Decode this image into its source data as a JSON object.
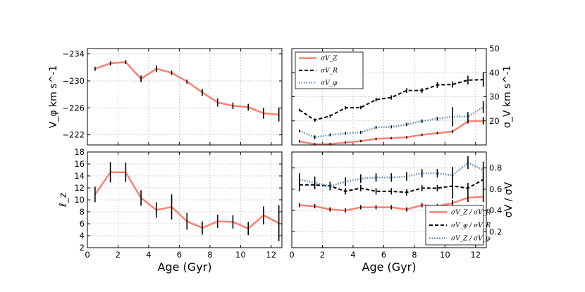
{
  "chart_data": [
    {
      "id": "tl",
      "type": "line",
      "ylabel": "V_φ km s^-1",
      "xlim": [
        0,
        12.7
      ],
      "ylim": [
        -220.5,
        -234.8
      ],
      "yticks": [
        -222,
        -226,
        -230,
        -234
      ],
      "yticklabels": [
        "−222",
        "−226",
        "−230",
        "−234"
      ],
      "xticks": [
        0,
        2,
        4,
        6,
        8,
        10,
        12
      ],
      "series": [
        {
          "name": "V_phi",
          "color": "#fa8072",
          "dash": "",
          "width": 2.5,
          "x": [
            0.5,
            1.5,
            2.5,
            3.5,
            4.5,
            5.5,
            6.5,
            7.5,
            8.5,
            9.5,
            10.5,
            11.5,
            12.5
          ],
          "y": [
            -231.8,
            -232.6,
            -232.8,
            -230.3,
            -231.8,
            -231.2,
            -229.9,
            -228.3,
            -226.8,
            -226.3,
            -226.1,
            -225.2,
            -225.0
          ],
          "err": [
            0.3,
            0.3,
            0.3,
            0.5,
            0.5,
            0.3,
            0.3,
            0.5,
            0.6,
            0.5,
            0.5,
            0.8,
            1.0
          ]
        }
      ]
    },
    {
      "id": "tr",
      "type": "line",
      "ylabel": "σ_V km s^-1",
      "xlim": [
        0,
        12.7
      ],
      "ylim": [
        10,
        50
      ],
      "yticks": [
        20,
        30,
        40,
        50
      ],
      "yticklabels": [
        "20",
        "30",
        "40",
        "50"
      ],
      "xticks": [
        0,
        2,
        4,
        6,
        8,
        10,
        12
      ],
      "legend": {
        "position": "top-left",
        "labels": [
          "σV_Z",
          "σV_R",
          "σV_φ"
        ]
      },
      "series": [
        {
          "name": "sigma_VZ",
          "color": "#fa8072",
          "dash": "",
          "width": 2.5,
          "x": [
            0.5,
            1.5,
            2.5,
            3.5,
            4.5,
            5.5,
            6.5,
            7.5,
            8.5,
            9.5,
            10.5,
            11.5,
            12.5
          ],
          "y": [
            11.5,
            10.3,
            10.4,
            11.0,
            11.6,
            12.5,
            12.8,
            13.2,
            14.2,
            14.9,
            15.6,
            19.8,
            20.0
          ],
          "err": [
            0.5,
            0.5,
            0.5,
            0.5,
            0.5,
            0.5,
            0.5,
            0.5,
            0.5,
            0.5,
            0.6,
            0.9,
            1.5
          ]
        },
        {
          "name": "sigma_VR",
          "color": "#000000",
          "dash": "5,3",
          "width": 2,
          "x": [
            0.5,
            1.5,
            2.5,
            3.5,
            4.5,
            5.5,
            6.5,
            7.5,
            8.5,
            9.5,
            10.5,
            11.5,
            12.5
          ],
          "y": [
            24.5,
            20.3,
            22.0,
            25.4,
            25.5,
            28.8,
            29.7,
            32.6,
            32.6,
            34.9,
            35.1,
            36.9,
            37.1
          ],
          "err": [
            0.6,
            0.7,
            0.7,
            0.7,
            0.7,
            0.8,
            0.9,
            1.0,
            1.0,
            1.2,
            1.3,
            1.8,
            3.0
          ]
        },
        {
          "name": "sigma_Vphi",
          "color": "#5a8fc4",
          "dash": "1.5,2",
          "width": 2.5,
          "x": [
            0.5,
            1.5,
            2.5,
            3.5,
            4.5,
            5.5,
            6.5,
            7.5,
            8.5,
            9.5,
            10.5,
            11.5,
            12.5
          ],
          "y": [
            15.8,
            13.2,
            14.2,
            14.8,
            15.2,
            17.3,
            17.5,
            18.5,
            19.9,
            20.9,
            21.7,
            21.8,
            25.7
          ],
          "err": [
            0.5,
            0.8,
            0.6,
            0.6,
            0.6,
            0.6,
            0.6,
            0.7,
            0.7,
            0.8,
            4.0,
            1.8,
            2.5
          ]
        }
      ]
    },
    {
      "id": "bl",
      "type": "line",
      "ylabel": "ℓ_z",
      "xlim": [
        0,
        12.7
      ],
      "ylim": [
        2,
        18
      ],
      "yticks": [
        2,
        4,
        6,
        8,
        10,
        12,
        14,
        16,
        18
      ],
      "yticklabels": [
        "2",
        "4",
        "6",
        "8",
        "10",
        "12",
        "14",
        "16",
        "18"
      ],
      "xticks": [
        0,
        2,
        4,
        6,
        8,
        10,
        12
      ],
      "xticklabels": [
        "0",
        "2",
        "4",
        "6",
        "8",
        "10",
        "12"
      ],
      "xlabel": "Age (Gyr)",
      "series": [
        {
          "name": "lz",
          "color": "#fa8072",
          "dash": "",
          "width": 2.5,
          "x": [
            0.5,
            1.5,
            2.5,
            3.5,
            4.5,
            5.5,
            6.5,
            7.5,
            8.5,
            9.5,
            10.5,
            11.5,
            12.5
          ],
          "y": [
            10.9,
            14.6,
            14.6,
            10.3,
            8.3,
            8.8,
            6.4,
            5.3,
            6.4,
            6.3,
            5.2,
            7.4,
            6.1
          ],
          "err": [
            1.3,
            1.7,
            1.6,
            1.3,
            1.3,
            2.1,
            1.4,
            1.1,
            1.1,
            1.1,
            1.1,
            1.5,
            3.0
          ]
        }
      ]
    },
    {
      "id": "br",
      "type": "line",
      "ylabel": "σV / σV",
      "xlim": [
        0,
        12.7
      ],
      "ylim": [
        0.05,
        0.95
      ],
      "yticks": [
        0.2,
        0.4,
        0.6,
        0.8
      ],
      "yticklabels": [
        "0.2",
        "0.4",
        "0.6",
        "0.8"
      ],
      "xticks": [
        0,
        2,
        4,
        6,
        8,
        10,
        12
      ],
      "xticklabels": [
        "0",
        "2",
        "4",
        "6",
        "8",
        "10",
        "12"
      ],
      "xlabel": "Age (Gyr)",
      "legend": {
        "position": "bottom-right",
        "labels": [
          "σV_Z / σV_R",
          "σV_φ / σV_R",
          "σV_Z / σV_φ"
        ]
      },
      "series": [
        {
          "name": "sigma_VZ_over_VR",
          "color": "#fa8072",
          "dash": "",
          "width": 2.5,
          "x": [
            0.5,
            1.5,
            2.5,
            3.5,
            4.5,
            5.5,
            6.5,
            7.5,
            8.5,
            9.5,
            10.5,
            11.5,
            12.5
          ],
          "y": [
            0.45,
            0.44,
            0.41,
            0.4,
            0.43,
            0.43,
            0.43,
            0.41,
            0.45,
            0.44,
            0.47,
            0.52,
            0.53
          ],
          "err": [
            0.02,
            0.02,
            0.02,
            0.02,
            0.02,
            0.02,
            0.02,
            0.02,
            0.02,
            0.02,
            0.03,
            0.04,
            0.05
          ]
        },
        {
          "name": "sigma_Vphi_over_VR",
          "color": "#000000",
          "dash": "5,3",
          "width": 2,
          "x": [
            0.5,
            1.5,
            2.5,
            3.5,
            4.5,
            5.5,
            6.5,
            7.5,
            8.5,
            9.5,
            10.5,
            11.5,
            12.5
          ],
          "y": [
            0.64,
            0.64,
            0.63,
            0.58,
            0.61,
            0.58,
            0.58,
            0.57,
            0.61,
            0.61,
            0.63,
            0.61,
            0.69
          ],
          "err": [
            0.06,
            0.04,
            0.03,
            0.03,
            0.03,
            0.03,
            0.03,
            0.03,
            0.03,
            0.03,
            0.12,
            0.05,
            0.12
          ]
        },
        {
          "name": "sigma_VZ_over_Vphi",
          "color": "#5a8fc4",
          "dash": "1.5,2",
          "width": 2.5,
          "x": [
            0.5,
            1.5,
            2.5,
            3.5,
            4.5,
            5.5,
            6.5,
            7.5,
            8.5,
            9.5,
            10.5,
            11.5,
            12.5
          ],
          "y": [
            0.69,
            0.66,
            0.63,
            0.67,
            0.7,
            0.71,
            0.71,
            0.72,
            0.75,
            0.75,
            0.73,
            0.85,
            0.78
          ],
          "err": [
            0.06,
            0.06,
            0.04,
            0.04,
            0.04,
            0.04,
            0.04,
            0.04,
            0.04,
            0.04,
            0.08,
            0.06,
            0.08
          ]
        }
      ]
    }
  ]
}
